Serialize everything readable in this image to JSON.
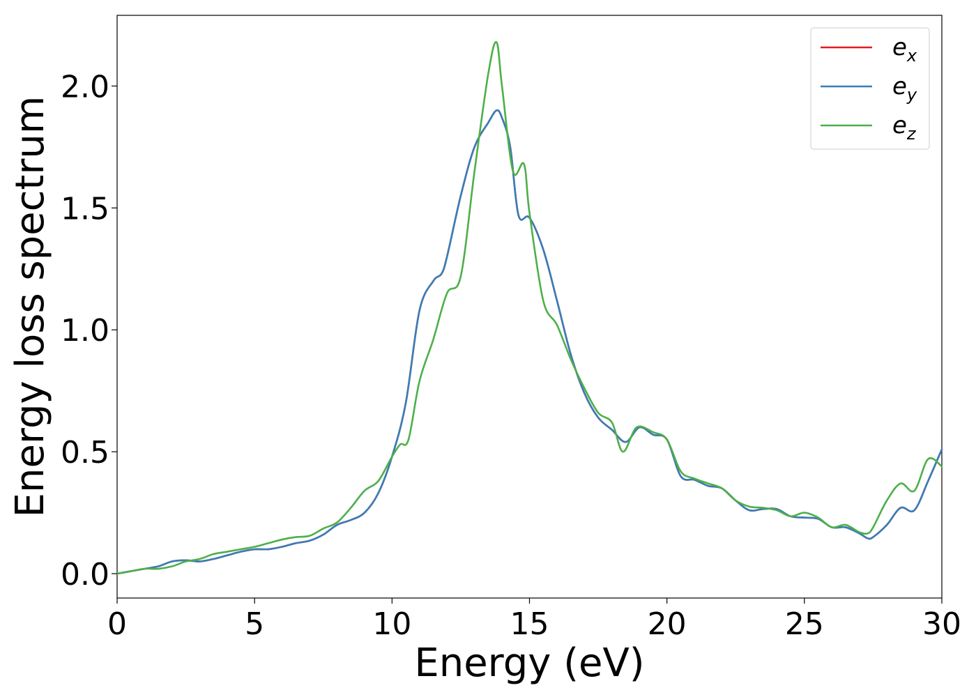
{
  "chart_data": {
    "type": "line",
    "title": "",
    "xlabel": "Energy (eV)",
    "ylabel": "Energy loss spectrum",
    "xlim": [
      0,
      30
    ],
    "ylim": [
      -0.1,
      2.29
    ],
    "xticks": [
      0,
      5,
      10,
      15,
      20,
      25,
      30
    ],
    "xtick_labels": [
      "0",
      "5",
      "10",
      "15",
      "20",
      "25",
      "30"
    ],
    "yticks": [
      0.0,
      0.5,
      1.0,
      1.5,
      2.0
    ],
    "ytick_labels": [
      "0.0",
      "0.5",
      "1.0",
      "1.5",
      "2.0"
    ],
    "grid": false,
    "legend_position": "top-right",
    "series": [
      {
        "name": "e_x",
        "legend_base": "e",
        "legend_sub": "x",
        "color": "#e41a1c",
        "x": [
          0,
          0.5,
          1,
          1.5,
          2,
          2.5,
          3,
          3.5,
          4,
          4.5,
          5,
          5.5,
          6,
          6.5,
          7,
          7.5,
          8,
          8.5,
          9,
          9.5,
          10,
          10.5,
          11,
          11.5,
          11.8,
          12,
          12.5,
          13,
          13.5,
          13.8,
          14,
          14.3,
          14.6,
          15,
          15.5,
          16,
          16.5,
          17,
          17.5,
          18,
          18.5,
          19,
          19.5,
          20,
          20.5,
          21,
          21.5,
          22,
          22.5,
          23,
          23.5,
          24,
          24.5,
          25,
          25.5,
          26,
          26.5,
          27,
          27.3,
          27.5,
          28,
          28.5,
          29,
          29.5,
          30
        ],
        "y": [
          0,
          0.01,
          0.02,
          0.03,
          0.05,
          0.055,
          0.05,
          0.06,
          0.075,
          0.09,
          0.1,
          0.1,
          0.11,
          0.125,
          0.135,
          0.16,
          0.2,
          0.22,
          0.25,
          0.33,
          0.48,
          0.7,
          1.08,
          1.2,
          1.23,
          1.3,
          1.55,
          1.75,
          1.85,
          1.9,
          1.87,
          1.75,
          1.47,
          1.46,
          1.33,
          1.12,
          0.9,
          0.74,
          0.64,
          0.59,
          0.54,
          0.6,
          0.57,
          0.55,
          0.4,
          0.385,
          0.36,
          0.35,
          0.3,
          0.26,
          0.265,
          0.265,
          0.235,
          0.23,
          0.225,
          0.19,
          0.19,
          0.165,
          0.145,
          0.15,
          0.2,
          0.27,
          0.26,
          0.38,
          0.51
        ]
      },
      {
        "name": "e_y",
        "legend_base": "e",
        "legend_sub": "y",
        "color": "#377eb8",
        "x": [
          0,
          0.5,
          1,
          1.5,
          2,
          2.5,
          3,
          3.5,
          4,
          4.5,
          5,
          5.5,
          6,
          6.5,
          7,
          7.5,
          8,
          8.5,
          9,
          9.5,
          10,
          10.5,
          11,
          11.5,
          11.8,
          12,
          12.5,
          13,
          13.5,
          13.8,
          14,
          14.3,
          14.6,
          15,
          15.5,
          16,
          16.5,
          17,
          17.5,
          18,
          18.5,
          19,
          19.5,
          20,
          20.5,
          21,
          21.5,
          22,
          22.5,
          23,
          23.5,
          24,
          24.5,
          25,
          25.5,
          26,
          26.5,
          27,
          27.3,
          27.5,
          28,
          28.5,
          29,
          29.5,
          30
        ],
        "y": [
          0,
          0.01,
          0.02,
          0.03,
          0.05,
          0.055,
          0.05,
          0.06,
          0.075,
          0.09,
          0.1,
          0.1,
          0.11,
          0.125,
          0.135,
          0.16,
          0.2,
          0.22,
          0.25,
          0.33,
          0.48,
          0.7,
          1.08,
          1.2,
          1.23,
          1.3,
          1.55,
          1.75,
          1.85,
          1.9,
          1.87,
          1.75,
          1.47,
          1.46,
          1.33,
          1.12,
          0.9,
          0.74,
          0.64,
          0.59,
          0.54,
          0.6,
          0.57,
          0.55,
          0.4,
          0.385,
          0.36,
          0.35,
          0.3,
          0.26,
          0.265,
          0.265,
          0.235,
          0.23,
          0.225,
          0.19,
          0.19,
          0.165,
          0.145,
          0.15,
          0.2,
          0.27,
          0.26,
          0.38,
          0.51
        ]
      },
      {
        "name": "e_z",
        "legend_base": "e",
        "legend_sub": "z",
        "color": "#4daf4a",
        "x": [
          0,
          0.5,
          1,
          1.5,
          2,
          2.5,
          3,
          3.5,
          4,
          4.5,
          5,
          5.5,
          6,
          6.5,
          7,
          7.5,
          8,
          8.5,
          9,
          9.5,
          10,
          10.3,
          10.6,
          11,
          11.5,
          12,
          12.5,
          13,
          13.5,
          13.8,
          14,
          14.4,
          14.8,
          15,
          15.5,
          16,
          16.5,
          17,
          17.5,
          18,
          18.4,
          18.9,
          19.5,
          20,
          20.5,
          21,
          21.5,
          22,
          22.5,
          23,
          23.5,
          24,
          24.5,
          25,
          25.5,
          26,
          26.5,
          27,
          27.3,
          27.5,
          28,
          28.5,
          29,
          29.5,
          30
        ],
        "y": [
          0,
          0.01,
          0.02,
          0.02,
          0.03,
          0.05,
          0.06,
          0.08,
          0.09,
          0.1,
          0.11,
          0.125,
          0.14,
          0.15,
          0.155,
          0.185,
          0.21,
          0.27,
          0.34,
          0.38,
          0.48,
          0.53,
          0.55,
          0.79,
          0.96,
          1.15,
          1.22,
          1.65,
          2.05,
          2.18,
          2.0,
          1.65,
          1.68,
          1.48,
          1.12,
          1.02,
          0.88,
          0.76,
          0.66,
          0.62,
          0.5,
          0.6,
          0.58,
          0.55,
          0.42,
          0.39,
          0.37,
          0.35,
          0.3,
          0.275,
          0.27,
          0.26,
          0.235,
          0.25,
          0.23,
          0.19,
          0.2,
          0.17,
          0.165,
          0.19,
          0.3,
          0.37,
          0.34,
          0.47,
          0.44
        ]
      }
    ]
  }
}
